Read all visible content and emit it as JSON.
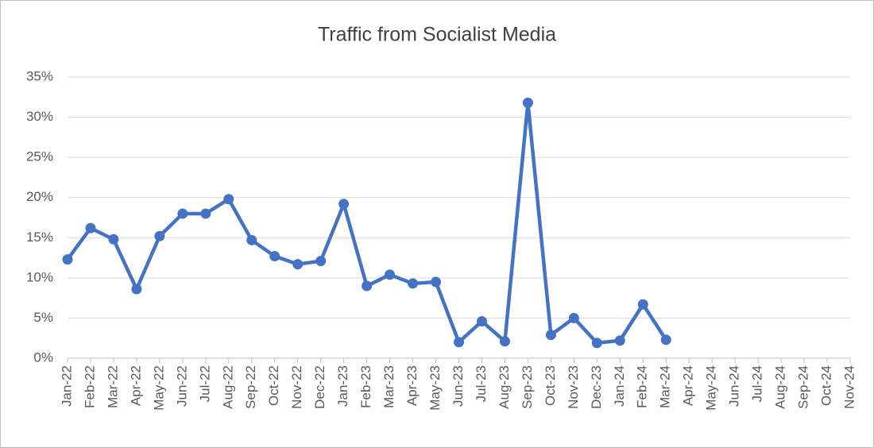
{
  "chart_data": {
    "type": "line",
    "title": "Traffic from Socialist Media",
    "categories": [
      "Jan-22",
      "Feb-22",
      "Mar-22",
      "Apr-22",
      "May-22",
      "Jun-22",
      "Jul-22",
      "Aug-22",
      "Sep-22",
      "Oct-22",
      "Nov-22",
      "Dec-22",
      "Jan-23",
      "Feb-23",
      "Mar-23",
      "Apr-23",
      "May-23",
      "Jun-23",
      "Jul-23",
      "Aug-23",
      "Sep-23",
      "Oct-23",
      "Nov-23",
      "Dec-23",
      "Jan-24",
      "Feb-24",
      "Mar-24",
      "Apr-24",
      "May-24",
      "Jun-24",
      "Jul-24",
      "Aug-24",
      "Sep-24",
      "Oct-24",
      "Nov-24"
    ],
    "values": [
      12.3,
      16.2,
      14.8,
      8.6,
      15.2,
      18.0,
      18.0,
      19.8,
      14.7,
      12.7,
      11.7,
      12.1,
      19.2,
      9.0,
      10.4,
      9.3,
      9.5,
      2.0,
      4.6,
      2.1,
      31.8,
      2.9,
      5.0,
      1.9,
      2.2,
      6.7,
      2.3,
      null,
      null,
      null,
      null,
      null,
      null,
      null,
      null
    ],
    "color": "#4472c4",
    "ylim": [
      0,
      35
    ],
    "yticks": [
      {
        "value": 0,
        "label": "0%"
      },
      {
        "value": 5,
        "label": "5%"
      },
      {
        "value": 10,
        "label": "10%"
      },
      {
        "value": 15,
        "label": "15%"
      },
      {
        "value": 20,
        "label": "20%"
      },
      {
        "value": 25,
        "label": "25%"
      },
      {
        "value": 30,
        "label": "30%"
      },
      {
        "value": 35,
        "label": "35%"
      }
    ],
    "grid": true
  }
}
